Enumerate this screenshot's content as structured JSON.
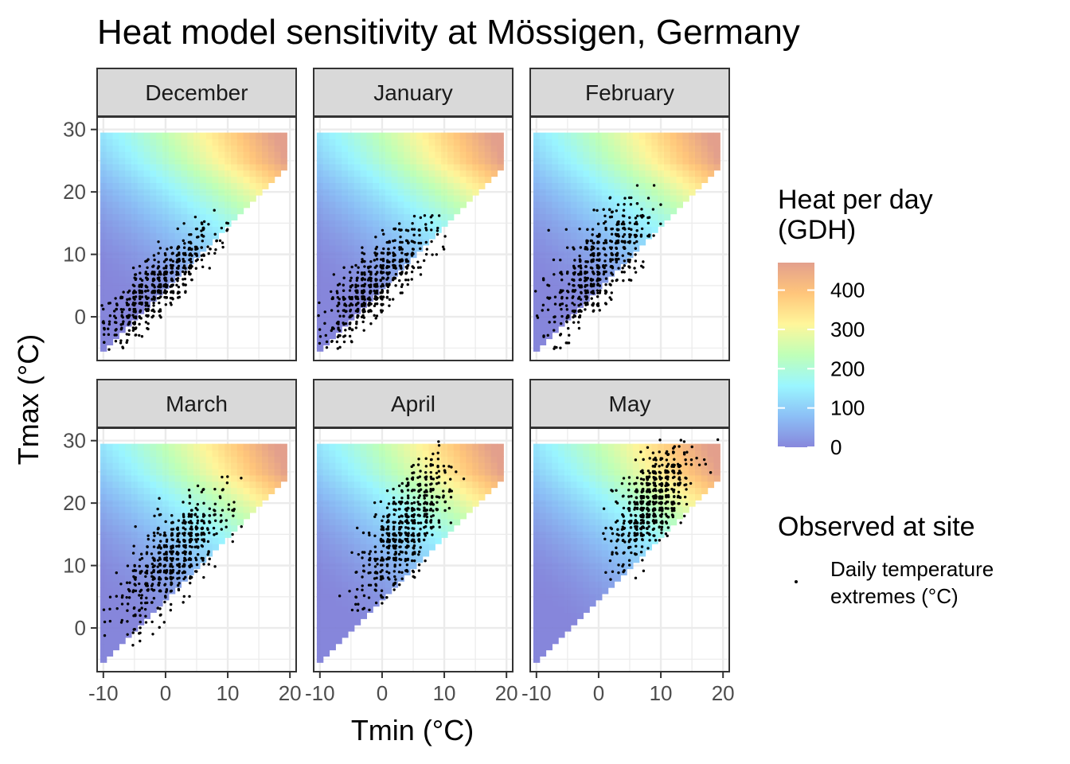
{
  "chart_data": {
    "type": "heatmap",
    "title": "Heat model sensitivity at Mössigen, Germany",
    "xlabel": "Tmin (°C)",
    "ylabel": "Tmax (°C)",
    "xlim": [
      -11,
      21
    ],
    "ylim": [
      -7,
      32
    ],
    "x_ticks": [
      -10,
      0,
      10,
      20
    ],
    "y_ticks": [
      0,
      10,
      20,
      30
    ],
    "x_tick_labels": [
      "-10",
      "0",
      "10",
      "20"
    ],
    "y_tick_labels": [
      "0",
      "10",
      "20",
      "30"
    ],
    "grid": true,
    "heatmap_grid": {
      "tmin_range": [
        -10,
        19
      ],
      "tmax_range": [
        -5,
        29
      ],
      "step": 1,
      "constraint": "tmax >= tmin + 5",
      "value_model": "approximate GDH per day, ~0 at low temperatures rising to ~470 at Tmax 24-26, Tmin 19"
    },
    "panels": [
      {
        "name": "December",
        "cloud": {
          "tmin_center": -1,
          "tmax_center": 5,
          "sd_tmin": 4.5,
          "sd_tmax": 4.5,
          "corr": 0.8,
          "n": 550,
          "tmin_min": -10,
          "tmin_max": 13,
          "tmax_min": -5,
          "tmax_max": 17
        }
      },
      {
        "name": "January",
        "cloud": {
          "tmin_center": -1.5,
          "tmax_center": 4.5,
          "sd_tmin": 4.5,
          "sd_tmax": 5,
          "corr": 0.78,
          "n": 550,
          "tmin_min": -10,
          "tmin_max": 10,
          "tmax_min": -5,
          "tmax_max": 17
        }
      },
      {
        "name": "February",
        "cloud": {
          "tmin_center": -0.5,
          "tmax_center": 7.5,
          "sd_tmin": 4,
          "sd_tmax": 5.5,
          "corr": 0.7,
          "n": 520,
          "tmin_min": -10,
          "tmin_max": 11,
          "tmax_min": -5,
          "tmax_max": 21
        }
      },
      {
        "name": "March",
        "cloud": {
          "tmin_center": 1,
          "tmax_center": 11,
          "sd_tmin": 4,
          "sd_tmax": 5,
          "corr": 0.7,
          "n": 580,
          "tmin_min": -10,
          "tmin_max": 13,
          "tmax_min": -3,
          "tmax_max": 24
        }
      },
      {
        "name": "April",
        "cloud": {
          "tmin_center": 3.5,
          "tmax_center": 15.5,
          "sd_tmin": 3.5,
          "sd_tmax": 5.5,
          "corr": 0.7,
          "n": 560,
          "tmin_min": -7,
          "tmin_max": 13,
          "tmax_min": 3,
          "tmax_max": 30
        }
      },
      {
        "name": "May",
        "cloud": {
          "tmin_center": 8.5,
          "tmax_center": 20,
          "sd_tmin": 3,
          "sd_tmax": 4.5,
          "corr": 0.6,
          "n": 600,
          "tmin_min": 0,
          "tmin_max": 19,
          "tmax_min": 8,
          "tmax_max": 30
        }
      }
    ],
    "legend": {
      "fill_title": [
        "Heat per day",
        "(GDH)"
      ],
      "fill_range": [
        0,
        470
      ],
      "fill_breaks": [
        0,
        100,
        200,
        300,
        400
      ],
      "fill_break_labels": [
        "0",
        "100",
        "200",
        "300",
        "400"
      ],
      "fill_colors": [
        "#7a7ad8",
        "#7fb8f5",
        "#8ff5ff",
        "#b8ffb0",
        "#fff58f",
        "#ffbf6c",
        "#e09580"
      ],
      "points_title": "Observed at site",
      "points_label": [
        "Daily temperature",
        "extremes (°C)"
      ],
      "placement": "right"
    },
    "colors": {
      "strip_fill": "#d9d9d9",
      "strip_border": "#333333",
      "panel_border": "#333333",
      "grid": "#ebebeb",
      "points": "#000000"
    }
  }
}
